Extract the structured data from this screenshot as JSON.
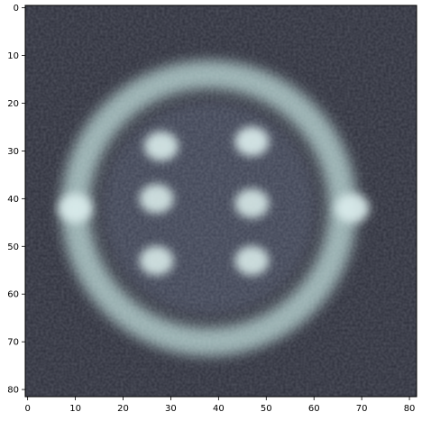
{
  "figure": {
    "x_ticks": [
      "0",
      "10",
      "20",
      "30",
      "40",
      "50",
      "60",
      "70",
      "80"
    ],
    "y_ticks": [
      "0",
      "10",
      "20",
      "30",
      "40",
      "50",
      "60",
      "70",
      "80"
    ]
  },
  "image": {
    "colormap": "bone",
    "pixel_grid": [
      82,
      82
    ],
    "extent_x": [
      -0.5,
      81.5
    ],
    "extent_y": [
      81.5,
      -0.5
    ],
    "background_color": "#2a2c38",
    "ring_color": "#a9c6c3",
    "ring_center": [
      38,
      42
    ],
    "ring_radii": [
      25,
      31
    ],
    "blobs": [
      {
        "x": 28,
        "y": 29,
        "value": 0.9
      },
      {
        "x": 47,
        "y": 28,
        "value": 0.95
      },
      {
        "x": 10,
        "y": 42,
        "value": 0.95
      },
      {
        "x": 27,
        "y": 40,
        "value": 0.85
      },
      {
        "x": 47,
        "y": 41,
        "value": 0.85
      },
      {
        "x": 68,
        "y": 42,
        "value": 0.95
      },
      {
        "x": 27,
        "y": 53,
        "value": 0.85
      },
      {
        "x": 47,
        "y": 53,
        "value": 0.85
      }
    ]
  }
}
